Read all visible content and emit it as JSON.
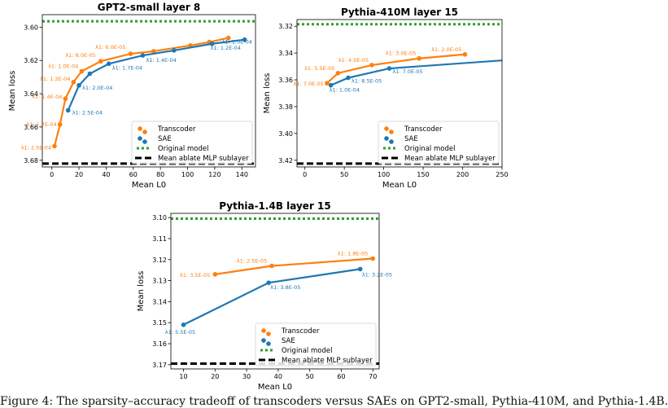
{
  "colors": {
    "transcoder": "#ff7f0e",
    "sae": "#1f77b4",
    "original": "#2ca02c",
    "ablate": "#000000",
    "axis": "#000000"
  },
  "caption": {
    "text": "Figure 4: The sparsity–accuracy tradeoff of transcoders versus SAEs on GPT2-small, Pythia-410M, and Pythia-1.4B."
  },
  "chart_data": [
    {
      "type": "line",
      "title": "GPT2-small layer 8",
      "xlabel": "Mean L0",
      "ylabel": "Mean loss",
      "xlim": [
        -7,
        150
      ],
      "ylim": [
        3.684,
        3.5925
      ],
      "y_inverted": true,
      "xticks": [
        0,
        20,
        40,
        60,
        80,
        100,
        120,
        140
      ],
      "xticklabels": [
        "0",
        "20",
        "40",
        "60",
        "80",
        "100",
        "120",
        "140"
      ],
      "yticks": [
        3.6,
        3.62,
        3.64,
        3.66,
        3.68
      ],
      "yticklabels": [
        "3.60",
        "3.62",
        "3.64",
        "3.66",
        "3.68"
      ],
      "original_model_loss": 3.5965,
      "mean_ablate_loss": 3.682,
      "legend_position": "lower-right",
      "legend": [
        "Transcoder",
        "SAE",
        "Original model",
        "Mean ablate MLP sublayer"
      ],
      "series": [
        {
          "name": "Transcoder",
          "color_key": "transcoder",
          "x": [
            2,
            6,
            10,
            16,
            22,
            36,
            58,
            75,
            102,
            116,
            130
          ],
          "y": [
            3.6715,
            3.6585,
            3.643,
            3.633,
            3.6265,
            3.6205,
            3.616,
            3.6145,
            3.611,
            3.609,
            3.6065
          ],
          "labels": [
            "λ1: 2.5E-04",
            "λ1: 1.7E-04",
            "λ1: 1.4E-04",
            "λ1: 1.2E-04",
            "λ1: 1.0E-04",
            "λ1: 8.0E-05",
            "λ1: 6.0E-05",
            "",
            "",
            "",
            ""
          ]
        },
        {
          "name": "SAE",
          "color_key": "sae",
          "x": [
            12,
            20,
            28,
            42,
            67,
            90,
            118,
            142
          ],
          "y": [
            3.65,
            3.635,
            3.628,
            3.622,
            3.617,
            3.614,
            3.61,
            3.6075
          ],
          "labels": [
            "λ1: 2.5E-04",
            "λ1: 2.0E-04",
            "",
            "λ1: 1.7E-04",
            "λ1: 1.4E-04",
            "",
            "λ1: 1.2E-04",
            "λ1: 1.0E-04"
          ]
        }
      ]
    },
    {
      "type": "line",
      "title": "Pythia-410M layer 15",
      "xlabel": "Mean L0",
      "ylabel": "Mean loss",
      "xlim": [
        -10,
        250
      ],
      "ylim": [
        3.425,
        3.315
      ],
      "y_inverted": true,
      "xticks": [
        0,
        50,
        100,
        150,
        200,
        250
      ],
      "xticklabels": [
        "0",
        "50",
        "100",
        "150",
        "200",
        "250"
      ],
      "yticks": [
        3.32,
        3.34,
        3.36,
        3.38,
        3.4,
        3.42
      ],
      "yticklabels": [
        "3.32",
        "3.34",
        "3.36",
        "3.38",
        "3.40",
        "3.42"
      ],
      "original_model_loss": 3.3185,
      "mean_ablate_loss": 3.4225,
      "legend_position": "lower-right",
      "legend": [
        "Transcoder",
        "SAE",
        "Original model",
        "Mean ablate MLP sublayer"
      ],
      "series": [
        {
          "name": "Transcoder",
          "color_key": "transcoder",
          "x": [
            28,
            42,
            85,
            145,
            203
          ],
          "y": [
            3.3625,
            3.355,
            3.349,
            3.344,
            3.341
          ],
          "labels": [
            "λ1: 7.0E-05",
            "λ1: 5.5E-05",
            "λ1: 4.0E-05",
            "λ1: 3.0E-05",
            "λ1: 2.0E-05"
          ]
        },
        {
          "name": "SAE",
          "color_key": "sae",
          "x": [
            33,
            55,
            107,
            250
          ],
          "y": [
            3.364,
            3.3585,
            3.3515,
            3.3455
          ],
          "labels": [
            "λ1: 1.0E-04",
            "λ1: 8.5E-05",
            "λ1: 7.0E-05",
            ""
          ]
        }
      ]
    },
    {
      "type": "line",
      "title": "Pythia-1.4B layer 15",
      "xlabel": "Mean L0",
      "ylabel": "Mean loss",
      "xlim": [
        6,
        72
      ],
      "ylim": [
        3.172,
        3.098
      ],
      "y_inverted": true,
      "xticks": [
        10,
        20,
        30,
        40,
        50,
        60,
        70
      ],
      "xticklabels": [
        "10",
        "20",
        "30",
        "40",
        "50",
        "60",
        "70"
      ],
      "yticks": [
        3.1,
        3.11,
        3.12,
        3.13,
        3.14,
        3.15,
        3.16,
        3.17
      ],
      "yticklabels": [
        "3.10",
        "3.11",
        "3.12",
        "3.13",
        "3.14",
        "3.15",
        "3.16",
        "3.17"
      ],
      "original_model_loss": 3.1005,
      "mean_ablate_loss": 3.1695,
      "legend_position": "lower-right",
      "legend": [
        "Transcoder",
        "SAE",
        "Original model",
        "Mean ablate MLP sublayer"
      ],
      "series": [
        {
          "name": "Transcoder",
          "color_key": "transcoder",
          "x": [
            20,
            38,
            70
          ],
          "y": [
            3.127,
            3.123,
            3.1195
          ],
          "labels": [
            "λ1: 3.5E-05",
            "λ1: 2.5E-05",
            "λ1: 1.8E-05"
          ]
        },
        {
          "name": "SAE",
          "color_key": "sae",
          "x": [
            10,
            37,
            66
          ],
          "y": [
            3.151,
            3.131,
            3.1245
          ],
          "labels": [
            "λ1: 5.5E-05",
            "λ1: 3.8E-05",
            "λ1: 3.2E-05"
          ]
        }
      ]
    }
  ]
}
